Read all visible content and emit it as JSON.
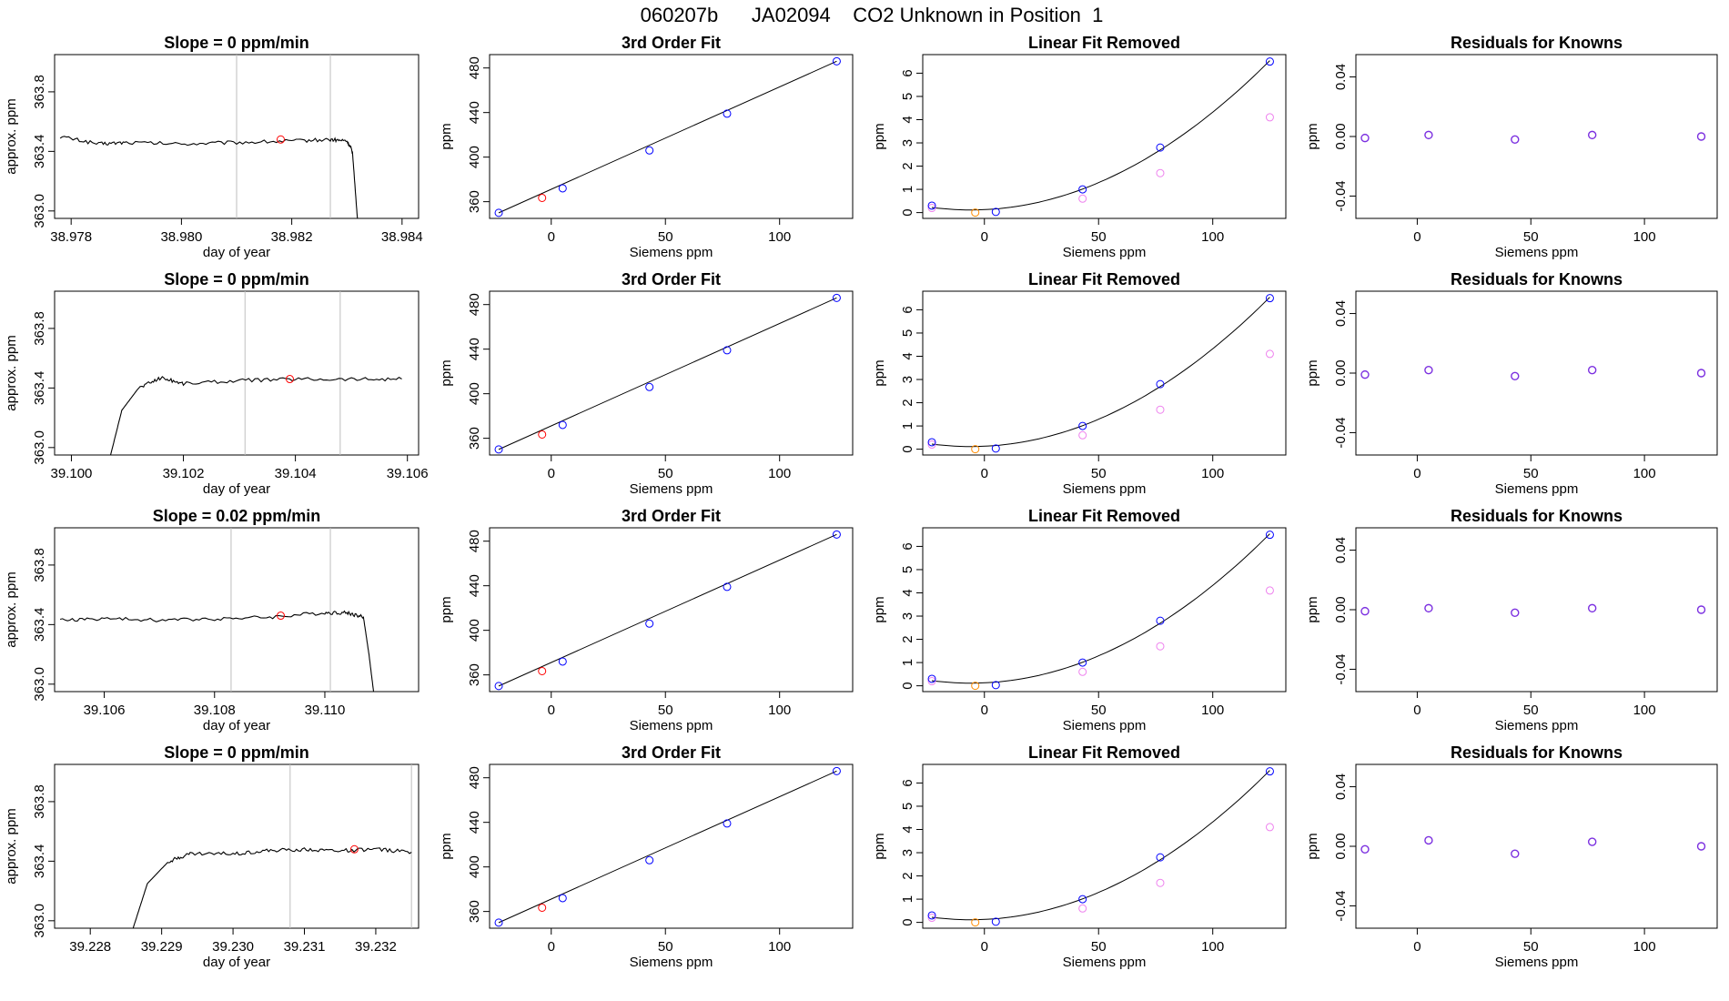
{
  "figure": {
    "suptitle": "060207b      JA02094    CO2 Unknown in Position  1",
    "colors": {
      "trace": "#000000",
      "marker": "#ff0000",
      "knowns": "#0000ff",
      "linear_removed": "#ee82ee",
      "unknown": "#ff8c00",
      "residual": "#7b2fe0",
      "grid": "#bebebe"
    }
  },
  "chart_data": [
    {
      "type": "line",
      "panel": "trace",
      "row": 0,
      "title": "Slope =  0  ppm/min",
      "xlabel": "day of year",
      "ylabel": "approx. ppm",
      "xlim": [
        38.9777,
        38.9843
      ],
      "ylim": [
        362.95,
        364.05
      ],
      "xticks": [
        38.978,
        38.98,
        38.982,
        38.984
      ],
      "xtick_labels": [
        "38.978",
        "38.980",
        "38.982",
        "38.984"
      ],
      "yticks": [
        363.0,
        363.4,
        363.8
      ],
      "ytick_labels": [
        "363.0",
        "363.4",
        "363.8"
      ],
      "vlines": [
        38.981,
        38.9827
      ],
      "marker": {
        "x": 38.9818,
        "y": 363.48
      },
      "trace": [
        [
          38.9778,
          363.5
        ],
        [
          38.9785,
          363.45
        ],
        [
          38.979,
          363.46
        ],
        [
          38.98,
          363.45
        ],
        [
          38.981,
          363.46
        ],
        [
          38.982,
          363.47
        ],
        [
          38.9827,
          363.48
        ],
        [
          38.983,
          363.47
        ],
        [
          38.9831,
          363.4
        ],
        [
          38.9832,
          362.9
        ]
      ]
    },
    {
      "type": "scatter",
      "panel": "fit",
      "row": 0,
      "title": "3rd Order Fit",
      "xlabel": "Siemens ppm",
      "ylabel": "ppm",
      "xlim": [
        -27,
        132
      ],
      "ylim": [
        345,
        492
      ],
      "xticks": [
        0,
        50,
        100
      ],
      "xtick_labels": [
        "0",
        "50",
        "100"
      ],
      "yticks": [
        360,
        400,
        440,
        480
      ],
      "ytick_labels": [
        "360",
        "400",
        "440",
        "480"
      ],
      "knowns": [
        [
          -23,
          350
        ],
        [
          5,
          372
        ],
        [
          43,
          406
        ],
        [
          77,
          439
        ],
        [
          125,
          486
        ]
      ],
      "unknown": [
        [
          -4,
          363.4
        ]
      ]
    },
    {
      "type": "scatter",
      "panel": "linear",
      "row": 0,
      "title": "Linear Fit Removed",
      "xlabel": "Siemens ppm",
      "ylabel": "ppm",
      "xlim": [
        -27,
        132
      ],
      "ylim": [
        -0.25,
        6.8
      ],
      "xticks": [
        0,
        50,
        100
      ],
      "xtick_labels": [
        "0",
        "50",
        "100"
      ],
      "yticks": [
        0,
        1,
        2,
        3,
        4,
        5,
        6
      ],
      "ytick_labels": [
        "0",
        "1",
        "2",
        "3",
        "4",
        "5",
        "6"
      ],
      "knowns": [
        [
          -23,
          0.3
        ],
        [
          5,
          0.03
        ],
        [
          43,
          1.0
        ],
        [
          77,
          2.8
        ],
        [
          125,
          6.5
        ]
      ],
      "linear_removed": [
        [
          -23,
          0.2
        ],
        [
          43,
          0.6
        ],
        [
          77,
          1.7
        ],
        [
          125,
          4.1
        ]
      ],
      "unknown": [
        [
          -4,
          0.0
        ]
      ]
    },
    {
      "type": "scatter",
      "panel": "residuals",
      "row": 0,
      "title": "Residuals for Knowns",
      "xlabel": "Siemens ppm",
      "ylabel": "ppm",
      "xlim": [
        -27,
        132
      ],
      "ylim": [
        -0.055,
        0.055
      ],
      "xticks": [
        0,
        50,
        100
      ],
      "xtick_labels": [
        "0",
        "50",
        "100"
      ],
      "yticks": [
        -0.04,
        0.0,
        0.04
      ],
      "ytick_labels": [
        "-0.04",
        "0.00",
        "0.04"
      ],
      "residuals": [
        [
          -23,
          -0.001
        ],
        [
          5,
          0.001
        ],
        [
          43,
          -0.002
        ],
        [
          77,
          0.001
        ],
        [
          125,
          0.0
        ]
      ]
    },
    {
      "type": "line",
      "panel": "trace",
      "row": 1,
      "title": "Slope =  0  ppm/min",
      "xlabel": "day of year",
      "ylabel": "approx. ppm",
      "xlim": [
        39.0997,
        39.1062
      ],
      "ylim": [
        362.95,
        364.05
      ],
      "xticks": [
        39.1,
        39.102,
        39.104,
        39.106
      ],
      "xtick_labels": [
        "39.100",
        "39.102",
        "39.104",
        "39.106"
      ],
      "yticks": [
        363.0,
        363.4,
        363.8
      ],
      "ytick_labels": [
        "363.0",
        "363.4",
        "363.8"
      ],
      "vlines": [
        39.1031,
        39.1048
      ],
      "marker": {
        "x": 39.1039,
        "y": 363.46
      },
      "trace": [
        [
          39.1007,
          362.95
        ],
        [
          39.1009,
          363.25
        ],
        [
          39.1012,
          363.4
        ],
        [
          39.1016,
          363.47
        ],
        [
          39.102,
          363.43
        ],
        [
          39.103,
          363.45
        ],
        [
          39.104,
          363.46
        ],
        [
          39.105,
          363.46
        ],
        [
          39.1059,
          363.46
        ]
      ]
    },
    {
      "type": "scatter",
      "panel": "fit",
      "row": 1,
      "title": "3rd Order Fit",
      "xlabel": "Siemens ppm",
      "ylabel": "ppm",
      "xlim": [
        -27,
        132
      ],
      "ylim": [
        345,
        492
      ],
      "xticks": [
        0,
        50,
        100
      ],
      "xtick_labels": [
        "0",
        "50",
        "100"
      ],
      "yticks": [
        360,
        400,
        440,
        480
      ],
      "ytick_labels": [
        "360",
        "400",
        "440",
        "480"
      ],
      "knowns": [
        [
          -23,
          350
        ],
        [
          5,
          372
        ],
        [
          43,
          406
        ],
        [
          77,
          439
        ],
        [
          125,
          486
        ]
      ],
      "unknown": [
        [
          -4,
          363.4
        ]
      ]
    },
    {
      "type": "scatter",
      "panel": "linear",
      "row": 1,
      "title": "Linear Fit Removed",
      "xlabel": "Siemens ppm",
      "ylabel": "ppm",
      "xlim": [
        -27,
        132
      ],
      "ylim": [
        -0.25,
        6.8
      ],
      "xticks": [
        0,
        50,
        100
      ],
      "xtick_labels": [
        "0",
        "50",
        "100"
      ],
      "yticks": [
        0,
        1,
        2,
        3,
        4,
        5,
        6
      ],
      "ytick_labels": [
        "0",
        "1",
        "2",
        "3",
        "4",
        "5",
        "6"
      ],
      "knowns": [
        [
          -23,
          0.3
        ],
        [
          5,
          0.03
        ],
        [
          43,
          1.0
        ],
        [
          77,
          2.8
        ],
        [
          125,
          6.5
        ]
      ],
      "linear_removed": [
        [
          -23,
          0.2
        ],
        [
          43,
          0.6
        ],
        [
          77,
          1.7
        ],
        [
          125,
          4.1
        ]
      ],
      "unknown": [
        [
          -4,
          0.0
        ]
      ]
    },
    {
      "type": "scatter",
      "panel": "residuals",
      "row": 1,
      "title": "Residuals for Knowns",
      "xlabel": "Siemens ppm",
      "ylabel": "ppm",
      "xlim": [
        -27,
        132
      ],
      "ylim": [
        -0.055,
        0.055
      ],
      "xticks": [
        0,
        50,
        100
      ],
      "xtick_labels": [
        "0",
        "50",
        "100"
      ],
      "yticks": [
        -0.04,
        0.0,
        0.04
      ],
      "ytick_labels": [
        "-0.04",
        "0.00",
        "0.04"
      ],
      "residuals": [
        [
          -23,
          -0.001
        ],
        [
          5,
          0.002
        ],
        [
          43,
          -0.002
        ],
        [
          77,
          0.002
        ],
        [
          125,
          0.0
        ]
      ]
    },
    {
      "type": "line",
      "panel": "trace",
      "row": 2,
      "title": "Slope =  0.02  ppm/min",
      "xlabel": "day of year",
      "ylabel": "approx. ppm",
      "xlim": [
        39.1051,
        39.1117
      ],
      "ylim": [
        362.95,
        364.05
      ],
      "xticks": [
        39.106,
        39.108,
        39.11
      ],
      "xtick_labels": [
        "39.106",
        "39.108",
        "39.110"
      ],
      "yticks": [
        363.0,
        363.4,
        363.8
      ],
      "ytick_labels": [
        "363.0",
        "363.4",
        "363.8"
      ],
      "vlines": [
        39.1083,
        39.1101
      ],
      "marker": {
        "x": 39.1092,
        "y": 363.46
      },
      "trace": [
        [
          39.1052,
          363.43
        ],
        [
          39.106,
          363.44
        ],
        [
          39.107,
          363.43
        ],
        [
          39.108,
          363.44
        ],
        [
          39.109,
          363.45
        ],
        [
          39.11,
          363.48
        ],
        [
          39.1104,
          363.48
        ],
        [
          39.1107,
          363.45
        ],
        [
          39.1108,
          363.2
        ],
        [
          39.1109,
          362.9
        ]
      ]
    },
    {
      "type": "scatter",
      "panel": "fit",
      "row": 2,
      "title": "3rd Order Fit",
      "xlabel": "Siemens ppm",
      "ylabel": "ppm",
      "xlim": [
        -27,
        132
      ],
      "ylim": [
        345,
        492
      ],
      "xticks": [
        0,
        50,
        100
      ],
      "xtick_labels": [
        "0",
        "50",
        "100"
      ],
      "yticks": [
        360,
        400,
        440,
        480
      ],
      "ytick_labels": [
        "360",
        "400",
        "440",
        "480"
      ],
      "knowns": [
        [
          -23,
          350
        ],
        [
          5,
          372
        ],
        [
          43,
          406
        ],
        [
          77,
          439
        ],
        [
          125,
          486
        ]
      ],
      "unknown": [
        [
          -4,
          363.4
        ]
      ]
    },
    {
      "type": "scatter",
      "panel": "linear",
      "row": 2,
      "title": "Linear Fit Removed",
      "xlabel": "Siemens ppm",
      "ylabel": "ppm",
      "xlim": [
        -27,
        132
      ],
      "ylim": [
        -0.25,
        6.8
      ],
      "xticks": [
        0,
        50,
        100
      ],
      "xtick_labels": [
        "0",
        "50",
        "100"
      ],
      "yticks": [
        0,
        1,
        2,
        3,
        4,
        5,
        6
      ],
      "ytick_labels": [
        "0",
        "1",
        "2",
        "3",
        "4",
        "5",
        "6"
      ],
      "knowns": [
        [
          -23,
          0.3
        ],
        [
          5,
          0.03
        ],
        [
          43,
          1.0
        ],
        [
          77,
          2.8
        ],
        [
          125,
          6.5
        ]
      ],
      "linear_removed": [
        [
          -23,
          0.2
        ],
        [
          43,
          0.6
        ],
        [
          77,
          1.7
        ],
        [
          125,
          4.1
        ]
      ],
      "unknown": [
        [
          -4,
          0.0
        ]
      ]
    },
    {
      "type": "scatter",
      "panel": "residuals",
      "row": 2,
      "title": "Residuals for Knowns",
      "xlabel": "Siemens ppm",
      "ylabel": "ppm",
      "xlim": [
        -27,
        132
      ],
      "ylim": [
        -0.055,
        0.055
      ],
      "xticks": [
        0,
        50,
        100
      ],
      "xtick_labels": [
        "0",
        "50",
        "100"
      ],
      "yticks": [
        -0.04,
        0.0,
        0.04
      ],
      "ytick_labels": [
        "-0.04",
        "0.00",
        "0.04"
      ],
      "residuals": [
        [
          -23,
          -0.001
        ],
        [
          5,
          0.001
        ],
        [
          43,
          -0.002
        ],
        [
          77,
          0.001
        ],
        [
          125,
          0.0
        ]
      ]
    },
    {
      "type": "line",
      "panel": "trace",
      "row": 3,
      "title": "Slope =  0  ppm/min",
      "xlabel": "day of year",
      "ylabel": "approx. ppm",
      "xlim": [
        39.2275,
        39.2326
      ],
      "ylim": [
        362.95,
        364.05
      ],
      "xticks": [
        39.228,
        39.229,
        39.23,
        39.231,
        39.232
      ],
      "xtick_labels": [
        "39.228",
        "39.229",
        "39.230",
        "39.231",
        "39.232"
      ],
      "yticks": [
        363.0,
        363.4,
        363.8
      ],
      "ytick_labels": [
        "363.0",
        "363.4",
        "363.8"
      ],
      "vlines": [
        39.2308,
        39.2325
      ],
      "marker": {
        "x": 39.2317,
        "y": 363.48
      },
      "trace": [
        [
          39.2286,
          362.95
        ],
        [
          39.2288,
          363.25
        ],
        [
          39.2291,
          363.4
        ],
        [
          39.2294,
          363.45
        ],
        [
          39.23,
          363.45
        ],
        [
          39.2305,
          363.47
        ],
        [
          39.231,
          363.48
        ],
        [
          39.2315,
          363.47
        ],
        [
          39.232,
          363.48
        ],
        [
          39.2325,
          363.46
        ]
      ]
    },
    {
      "type": "scatter",
      "panel": "fit",
      "row": 3,
      "title": "3rd Order Fit",
      "xlabel": "Siemens ppm",
      "ylabel": "ppm",
      "xlim": [
        -27,
        132
      ],
      "ylim": [
        345,
        492
      ],
      "xticks": [
        0,
        50,
        100
      ],
      "xtick_labels": [
        "0",
        "50",
        "100"
      ],
      "yticks": [
        360,
        400,
        440,
        480
      ],
      "ytick_labels": [
        "360",
        "400",
        "440",
        "480"
      ],
      "knowns": [
        [
          -23,
          350
        ],
        [
          5,
          372
        ],
        [
          43,
          406
        ],
        [
          77,
          439
        ],
        [
          125,
          486
        ]
      ],
      "unknown": [
        [
          -4,
          363.4
        ]
      ]
    },
    {
      "type": "scatter",
      "panel": "linear",
      "row": 3,
      "title": "Linear Fit Removed",
      "xlabel": "Siemens ppm",
      "ylabel": "ppm",
      "xlim": [
        -27,
        132
      ],
      "ylim": [
        -0.25,
        6.8
      ],
      "xticks": [
        0,
        50,
        100
      ],
      "xtick_labels": [
        "0",
        "50",
        "100"
      ],
      "yticks": [
        0,
        1,
        2,
        3,
        4,
        5,
        6
      ],
      "ytick_labels": [
        "0",
        "1",
        "2",
        "3",
        "4",
        "5",
        "6"
      ],
      "knowns": [
        [
          -23,
          0.3
        ],
        [
          5,
          0.03
        ],
        [
          43,
          1.0
        ],
        [
          77,
          2.8
        ],
        [
          125,
          6.5
        ]
      ],
      "linear_removed": [
        [
          -23,
          0.2
        ],
        [
          43,
          0.6
        ],
        [
          77,
          1.7
        ],
        [
          125,
          4.1
        ]
      ],
      "unknown": [
        [
          -4,
          0.0
        ]
      ]
    },
    {
      "type": "scatter",
      "panel": "residuals",
      "row": 3,
      "title": "Residuals for Knowns",
      "xlabel": "Siemens ppm",
      "ylabel": "ppm",
      "xlim": [
        -27,
        132
      ],
      "ylim": [
        -0.055,
        0.055
      ],
      "xticks": [
        0,
        50,
        100
      ],
      "xtick_labels": [
        "0",
        "50",
        "100"
      ],
      "yticks": [
        -0.04,
        0.0,
        0.04
      ],
      "ytick_labels": [
        "-0.04",
        "0.00",
        "0.04"
      ],
      "residuals": [
        [
          -23,
          -0.002
        ],
        [
          5,
          0.004
        ],
        [
          43,
          -0.005
        ],
        [
          77,
          0.003
        ],
        [
          125,
          0.0
        ]
      ]
    }
  ]
}
